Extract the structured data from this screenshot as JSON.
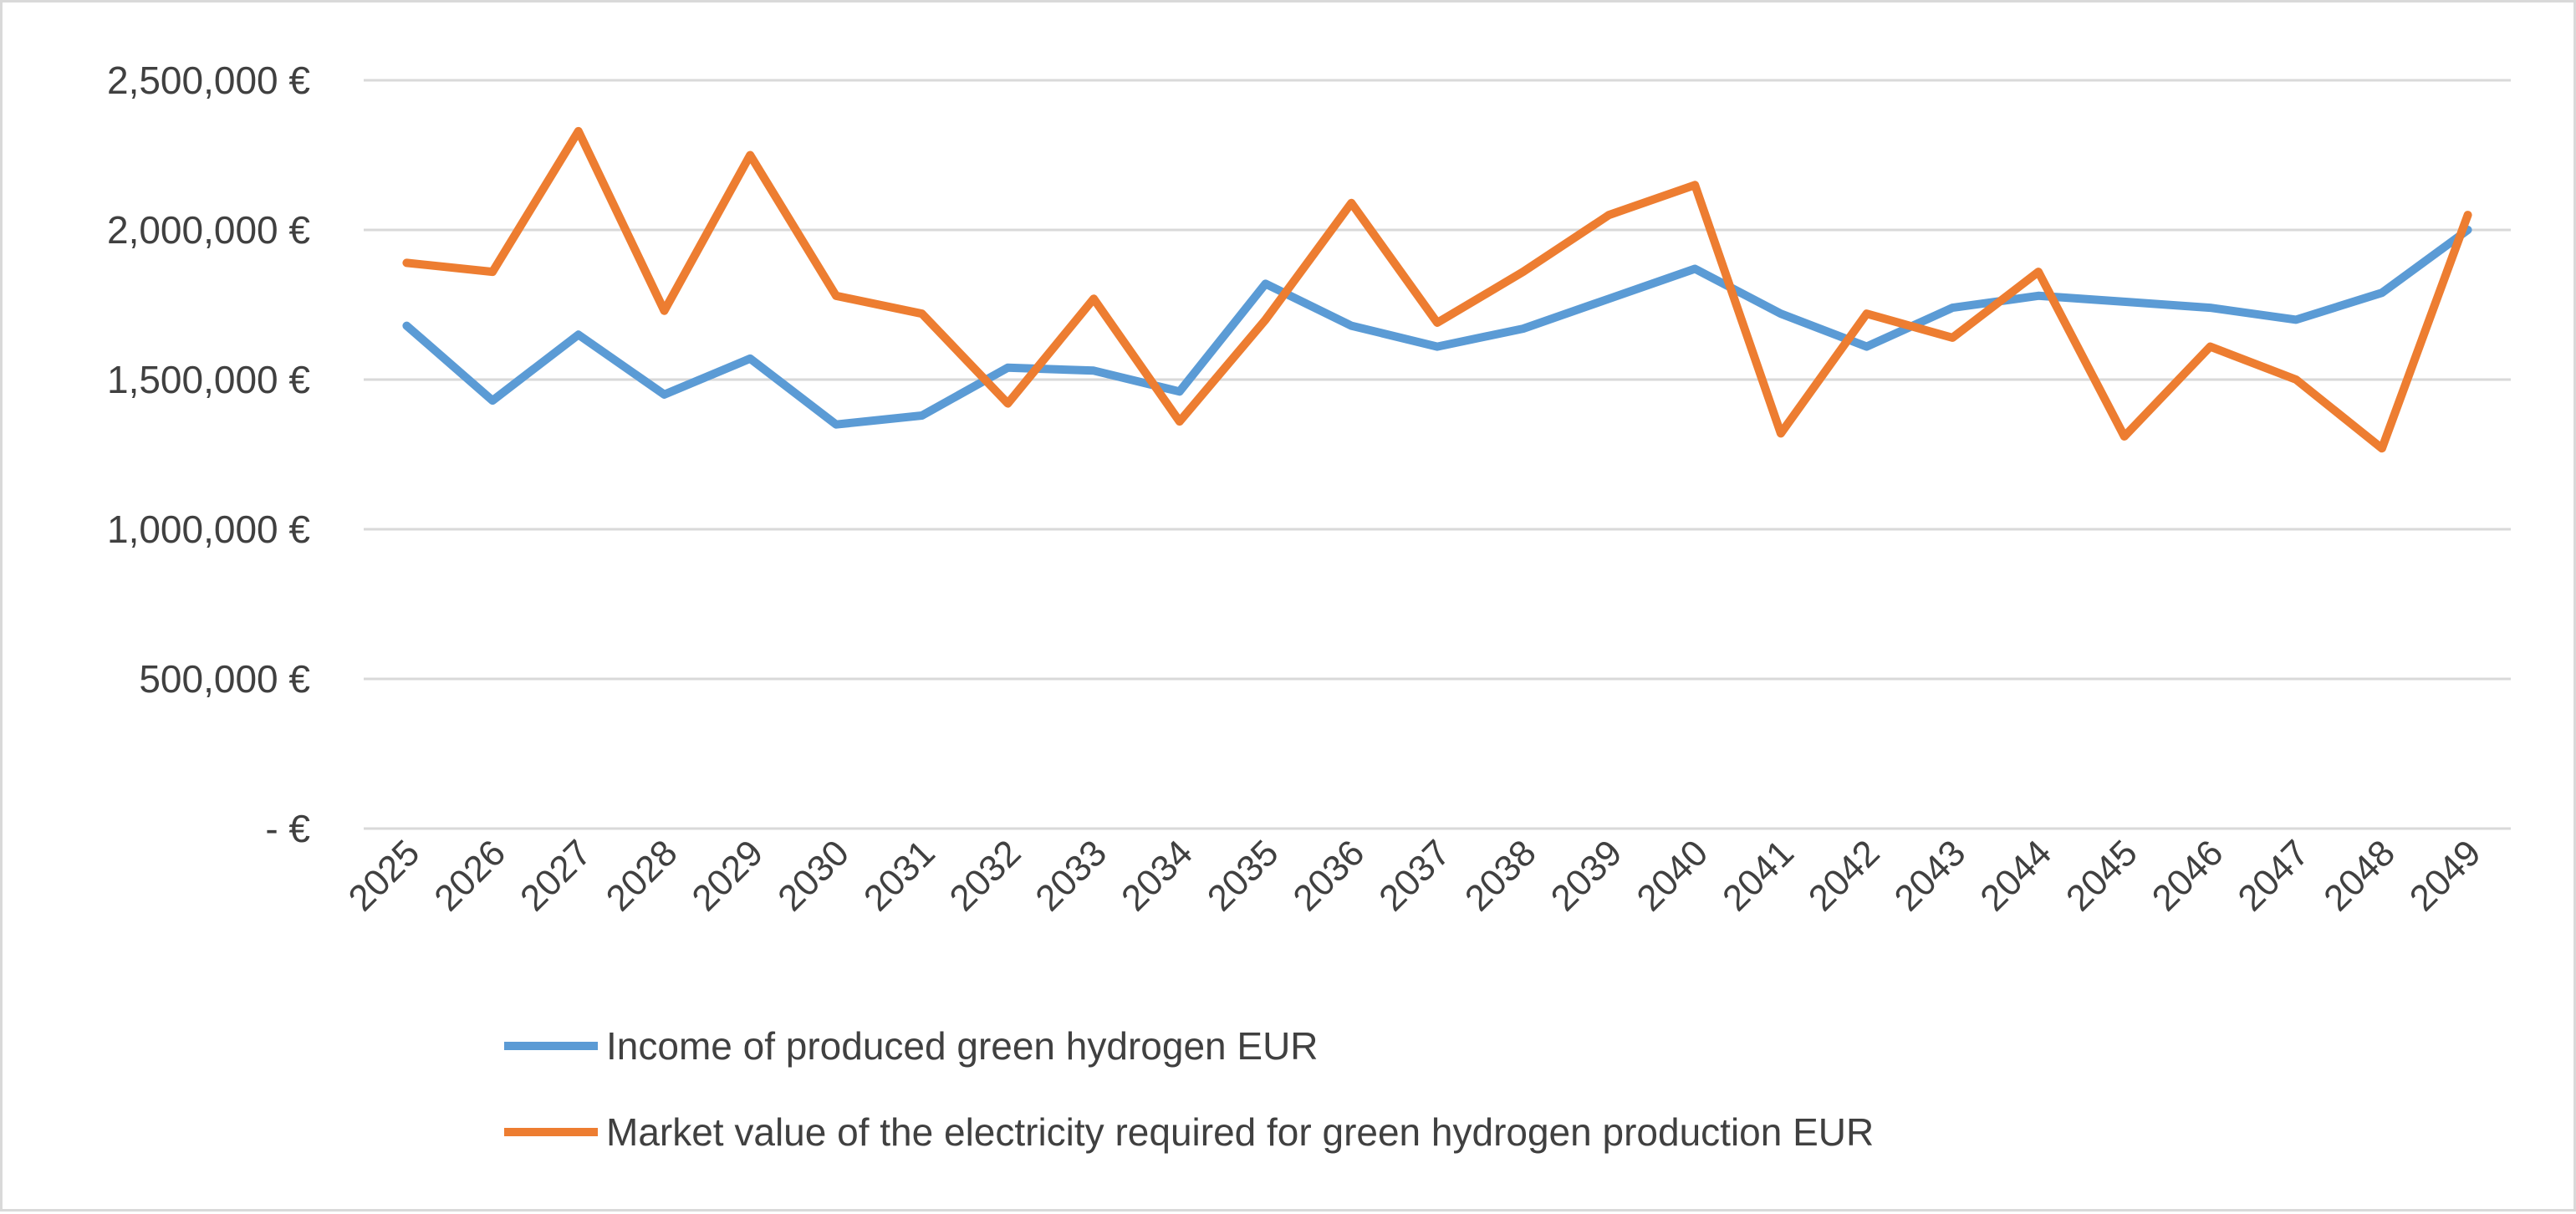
{
  "chart_data": {
    "type": "line",
    "title": "",
    "xlabel": "",
    "ylabel": "",
    "categories": [
      "2025",
      "2026",
      "2027",
      "2028",
      "2029",
      "2030",
      "2031",
      "2032",
      "2033",
      "2034",
      "2035",
      "2036",
      "2037",
      "2038",
      "2039",
      "2040",
      "2041",
      "2042",
      "2043",
      "2044",
      "2045",
      "2046",
      "2047",
      "2048",
      "2049"
    ],
    "ylim": [
      0,
      2500000
    ],
    "yticks": [
      {
        "value": 0,
        "label": "- €"
      },
      {
        "value": 500000,
        "label": "500,000 €"
      },
      {
        "value": 1000000,
        "label": "1,000,000 €"
      },
      {
        "value": 1500000,
        "label": "1,500,000 €"
      },
      {
        "value": 2000000,
        "label": "2,000,000 €"
      },
      {
        "value": 2500000,
        "label": "2,500,000 €"
      }
    ],
    "grid": true,
    "legend_position": "bottom",
    "series": [
      {
        "name": "Income of produced green hydrogen EUR",
        "color": "#5b9bd5",
        "values": [
          1680000,
          1430000,
          1650000,
          1450000,
          1570000,
          1350000,
          1380000,
          1540000,
          1530000,
          1460000,
          1820000,
          1680000,
          1610000,
          1670000,
          1770000,
          1870000,
          1720000,
          1610000,
          1740000,
          1780000,
          1760000,
          1740000,
          1700000,
          1790000,
          2000000
        ]
      },
      {
        "name": "Market value of the electricity required for green hydrogen production EUR",
        "color": "#ed7d31",
        "values": [
          1890000,
          1860000,
          2330000,
          1730000,
          2250000,
          1780000,
          1720000,
          1420000,
          1770000,
          1360000,
          1700000,
          2090000,
          1690000,
          1860000,
          2050000,
          2150000,
          1320000,
          1720000,
          1640000,
          1860000,
          1310000,
          1610000,
          1500000,
          1270000,
          2050000
        ]
      }
    ]
  }
}
